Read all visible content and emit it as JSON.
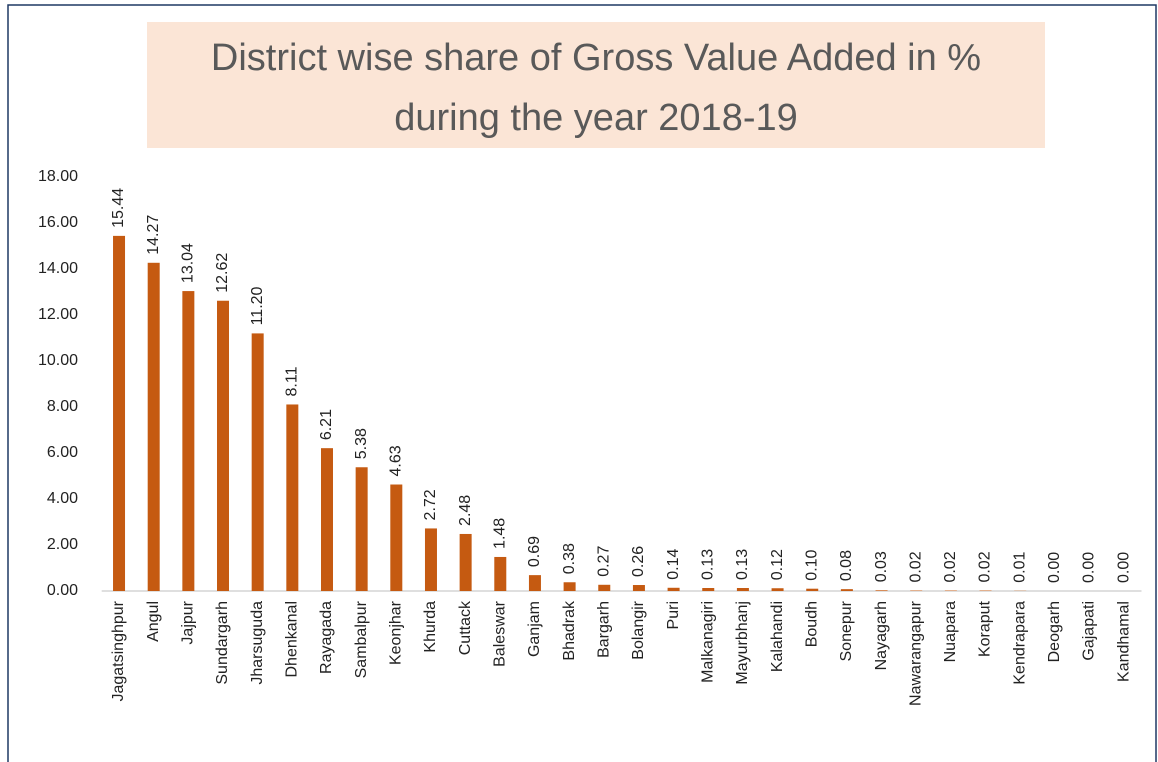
{
  "chart_data": {
    "type": "bar",
    "title": [
      "District wise share of Gross Value Added in %",
      "during the year 2018-19"
    ],
    "categories": [
      "Jagatsinghpur",
      "Angul",
      "Jajpur",
      "Sundargarh",
      "Jharsuguda",
      "Dhenkanal",
      "Rayagada",
      "Sambalpur",
      "Keonjhar",
      "Khurda",
      "Cuttack",
      "Baleswar",
      "Ganjam",
      "Bhadrak",
      "Bargarh",
      "Bolangir",
      "Puri",
      "Malkanagiri",
      "Mayurbhanj",
      "Kalahandi",
      "Boudh",
      "Sonepur",
      "Nayagarh",
      "Nawarangapur",
      "Nuapara",
      "Koraput",
      "Kendrapara",
      "Deogarh",
      "Gajapati",
      "Kandhamal"
    ],
    "values": [
      15.44,
      14.27,
      13.04,
      12.62,
      11.2,
      8.11,
      6.21,
      5.38,
      4.63,
      2.72,
      2.48,
      1.48,
      0.69,
      0.38,
      0.27,
      0.26,
      0.14,
      0.13,
      0.13,
      0.12,
      0.1,
      0.08,
      0.03,
      0.02,
      0.02,
      0.02,
      0.01,
      0,
      0,
      0
    ],
    "value_labels": [
      "15.44",
      "14.27",
      "13.04",
      "12.62",
      "11.20",
      "8.11",
      "6.21",
      "5.38",
      "4.63",
      "2.72",
      "2.48",
      "1.48",
      "0.69",
      "0.38",
      "0.27",
      "0.26",
      "0.14",
      "0.13",
      "0.13",
      "0.12",
      "0.10",
      "0.08",
      "0.03",
      "0.02",
      "0.02",
      "0.02",
      "0.01",
      "0.00",
      "0.00",
      "0.00"
    ],
    "color": "#c55a11",
    "ylim": [
      0,
      18
    ],
    "yticks": [
      {
        "value": 0,
        "label": "0.00"
      },
      {
        "value": 2,
        "label": "2.00"
      },
      {
        "value": 4,
        "label": "4.00"
      },
      {
        "value": 6,
        "label": "6.00"
      },
      {
        "value": 8,
        "label": "8.00"
      },
      {
        "value": 10,
        "label": "10.00"
      },
      {
        "value": 12,
        "label": "12.00"
      },
      {
        "value": 14,
        "label": "14.00"
      },
      {
        "value": 16,
        "label": "16.00"
      },
      {
        "value": 18,
        "label": "18.00"
      }
    ],
    "grid": false
  }
}
